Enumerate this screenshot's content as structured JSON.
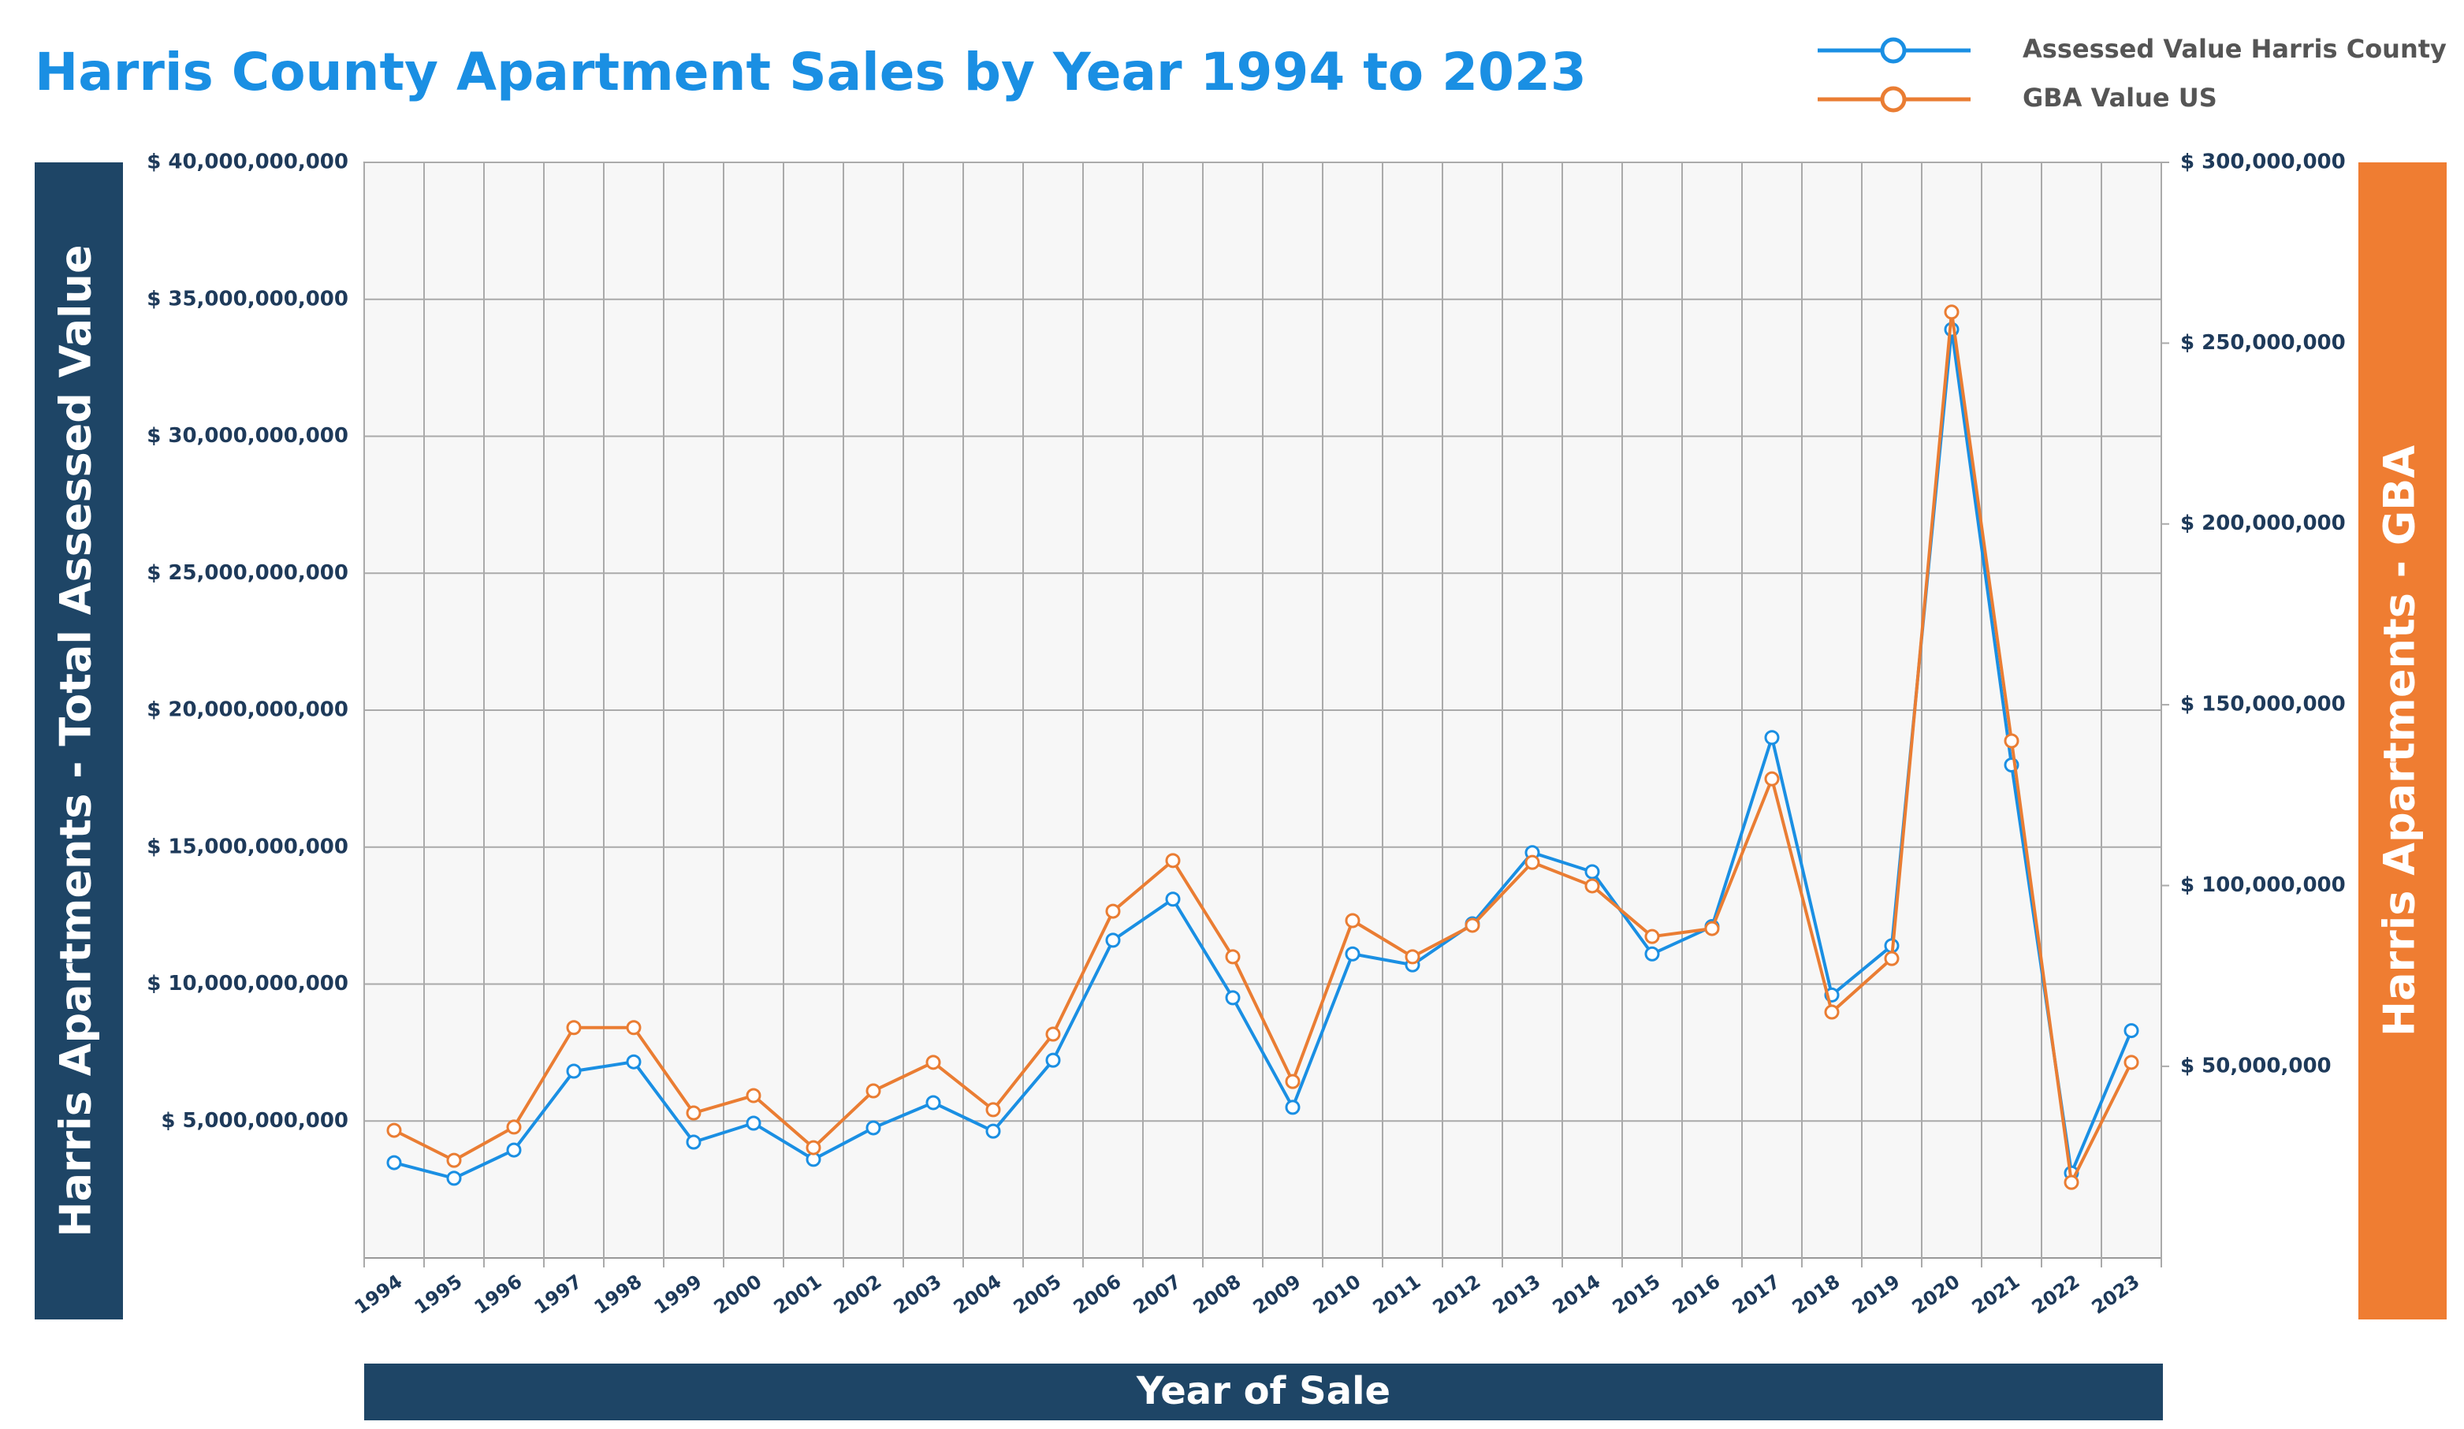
{
  "chart_data": {
    "type": "line",
    "title": "Harris County Apartment Sales by Year 1994 to 2023",
    "xlabel": "Year of Sale",
    "ylabel": "Harris Apartments - Total Assessed Value",
    "y2label": "Harris Apartments - GBA",
    "categories": [
      "1994",
      "1995",
      "1996",
      "1997",
      "1998",
      "1999",
      "2000",
      "2001",
      "2002",
      "2003",
      "2004",
      "2005",
      "2006",
      "2007",
      "2008",
      "2009",
      "2010",
      "2011",
      "2012",
      "2013",
      "2014",
      "2015",
      "2016",
      "2017",
      "2018",
      "2019",
      "2020",
      "2021",
      "2022",
      "2023"
    ],
    "series": [
      {
        "name": "Assessed Value Harris County",
        "color": "#1a8fe3",
        "axis": "y",
        "values": [
          3480000000,
          2910000000,
          3940000000,
          6820000000,
          7160000000,
          4230000000,
          4920000000,
          3600000000,
          4750000000,
          5670000000,
          4630000000,
          7220000000,
          11600000000,
          13100000000,
          9500000000,
          5500000000,
          11100000000,
          10700000000,
          12200000000,
          14800000000,
          14100000000,
          11100000000,
          12100000000,
          19000000000,
          9600000000,
          11400000000,
          33900000000,
          18000000000,
          3100000000,
          8300000000
        ]
      },
      {
        "name": "GBA Value US",
        "color": "#ea7d33",
        "axis": "y2",
        "values": [
          32300000,
          24000000,
          33200000,
          60700000,
          60700000,
          37100000,
          41900000,
          27500000,
          43200000,
          51100000,
          38000000,
          58900000,
          92900000,
          106900000,
          80300000,
          45800000,
          90300000,
          80300000,
          89000000,
          106400000,
          99900000,
          85900000,
          88100000,
          129500000,
          65000000,
          79800000,
          258600000,
          140000000,
          17900000,
          51100000
        ]
      }
    ],
    "ylim": [
      0,
      40000000000
    ],
    "yticks": [
      {
        "value": 5000000000,
        "label": "$ 5,000,000,000"
      },
      {
        "value": 10000000000,
        "label": "$ 10,000,000,000"
      },
      {
        "value": 15000000000,
        "label": "$ 15,000,000,000"
      },
      {
        "value": 20000000000,
        "label": "$ 20,000,000,000"
      },
      {
        "value": 25000000000,
        "label": "$ 25,000,000,000"
      },
      {
        "value": 30000000000,
        "label": "$ 30,000,000,000"
      },
      {
        "value": 35000000000,
        "label": "$ 35,000,000,000"
      },
      {
        "value": 40000000000,
        "label": "$ 40,000,000,000"
      }
    ],
    "y2lim": [
      -3000000,
      300000000
    ],
    "y2ticks": [
      {
        "value": 50000000,
        "label": "$ 50,000,000"
      },
      {
        "value": 100000000,
        "label": "$ 100,000,000"
      },
      {
        "value": 150000000,
        "label": "$ 150,000,000"
      },
      {
        "value": 200000000,
        "label": "$ 200,000,000"
      },
      {
        "value": 250000000,
        "label": "$ 250,000,000"
      },
      {
        "value": 300000000,
        "label": "$ 300,000,000"
      }
    ],
    "grid": true,
    "legend": "top-right"
  }
}
